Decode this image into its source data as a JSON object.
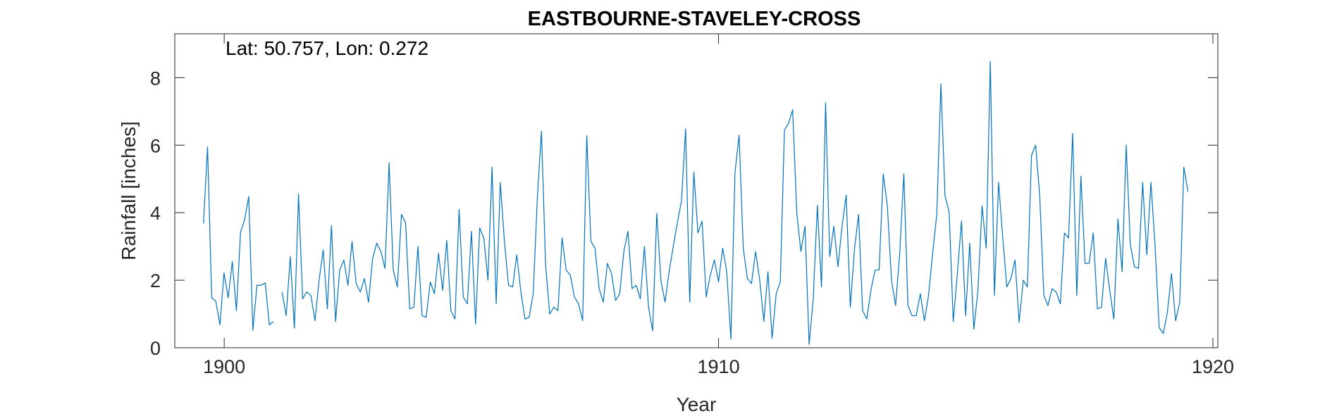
{
  "chart_data": {
    "type": "line",
    "title": "EASTBOURNE-STAVELEY-CROSS",
    "annotation": "Lat: 50.757, Lon: 0.272",
    "xlabel": "Year",
    "ylabel": "Rainfall [inches]",
    "xlim": [
      1899,
      1920.1
    ],
    "ylim": [
      0,
      9.3
    ],
    "xticks": [
      1900,
      1910,
      1920
    ],
    "yticks": [
      0,
      2,
      4,
      6,
      8
    ],
    "grid": false,
    "line_color": "#0072BD",
    "series": [
      {
        "segments": [
          {
            "start": 1899.58,
            "step": 0.0833,
            "values": [
              3.68,
              5.95,
              1.48,
              1.38,
              0.68,
              2.22,
              1.48,
              2.55,
              1.1,
              3.42,
              3.8,
              4.48,
              0.52,
              1.85,
              1.85,
              1.92,
              0.68,
              0.78
            ]
          },
          {
            "start": 1901.17,
            "step": 0.0833,
            "values": [
              1.65,
              0.95,
              2.7,
              0.58,
              4.55,
              1.45,
              1.65,
              1.55,
              0.8,
              2.0,
              2.9,
              1.15,
              3.62,
              0.78,
              2.3,
              2.6,
              1.85,
              3.15,
              1.9,
              1.65,
              2.05,
              1.35,
              2.65,
              3.1,
              2.85,
              2.35,
              5.48,
              2.3,
              1.8,
              3.95,
              3.7,
              1.15,
              1.2,
              3.0,
              0.95,
              0.9,
              1.95,
              1.6,
              2.8,
              1.7,
              3.18,
              1.1,
              0.85,
              4.1,
              1.5,
              1.3,
              3.45,
              0.7,
              3.55,
              3.25,
              2.0,
              5.35,
              1.3,
              4.9,
              3.15,
              1.85,
              1.8,
              2.75,
              1.65,
              0.85,
              0.9,
              1.6,
              4.45,
              6.42,
              2.45,
              1.0,
              1.2,
              1.1,
              3.25,
              2.3,
              2.15,
              1.5,
              1.3,
              0.8,
              6.28,
              3.15,
              2.95,
              1.75,
              1.35,
              2.5,
              2.2,
              1.4,
              1.6,
              2.85,
              3.45,
              1.75,
              1.85,
              1.45,
              3.0,
              1.2,
              0.5,
              3.98,
              2.0,
              1.35,
              2.25,
              3.0,
              3.7,
              4.35,
              6.48,
              1.35,
              5.2,
              3.4,
              3.75,
              1.5,
              2.15,
              2.6,
              1.95,
              2.95,
              2.25,
              0.25,
              5.2,
              6.3,
              2.95,
              2.05,
              1.9,
              2.85,
              2.0,
              0.78,
              2.25,
              0.28,
              1.6,
              1.95,
              6.45,
              6.65,
              7.05,
              4.0,
              2.85,
              3.6,
              0.1,
              1.45,
              4.22,
              1.8,
              7.25,
              2.7,
              3.6,
              2.4,
              3.6,
              4.52,
              1.2,
              2.9,
              3.95,
              1.1,
              0.85,
              1.7,
              2.3,
              2.3,
              5.15,
              4.2,
              2.0,
              1.25,
              2.8,
              5.15,
              1.25,
              0.95,
              0.95,
              1.6,
              0.8,
              1.55,
              2.8,
              3.95,
              7.82,
              4.5,
              4.02,
              0.78,
              2.2,
              3.75,
              0.95,
              3.1,
              0.55,
              1.7,
              4.2,
              2.95,
              8.48,
              1.55,
              4.9,
              3.3,
              1.8,
              2.05,
              2.6,
              0.75,
              2.0,
              1.8,
              5.7,
              6.0,
              4.5,
              1.55,
              1.25,
              1.75,
              1.65,
              1.3,
              3.4,
              3.25,
              6.35,
              1.55,
              5.08,
              2.5,
              2.5,
              3.4,
              1.15,
              1.2,
              2.65,
              1.7,
              0.85,
              3.82,
              2.25,
              6.0,
              3.05,
              2.4,
              2.35,
              4.9,
              2.75,
              4.9,
              3.05,
              0.6,
              0.42,
              1.05,
              2.2,
              0.8,
              1.35,
              5.35,
              4.62
            ]
          }
        ]
      }
    ]
  }
}
